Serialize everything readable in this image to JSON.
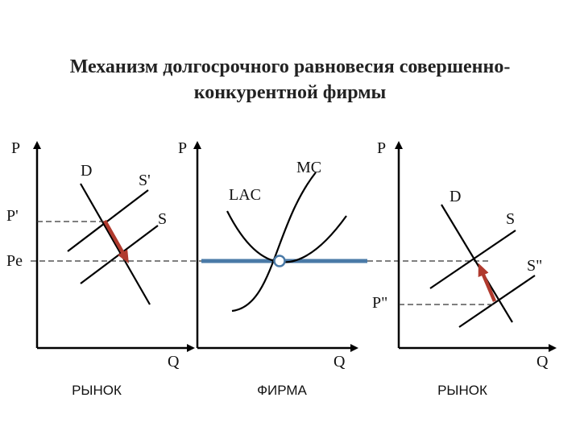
{
  "title": {
    "line1": "Механизм долгосрочного равновесия совершенно-",
    "line2": "конкурентной фирмы"
  },
  "panels": {
    "market_left": {
      "caption": "РЫНОК",
      "axis_y": "P",
      "axis_x": "Q",
      "demand_label": "D",
      "supply_new_label": "S'",
      "supply_label": "S",
      "price_high_label": "P'",
      "price_eq_label": "Pe"
    },
    "firm": {
      "caption": "ФИРМА",
      "axis_y": "P",
      "axis_x": "Q",
      "mc_label": "MC",
      "lac_label": "LAC"
    },
    "market_right": {
      "caption": "РЫНОК",
      "axis_y": "P",
      "axis_x": "Q",
      "demand_label": "D",
      "supply_label": "S",
      "supply_new_label": "S\"",
      "price_low_label": "P\""
    }
  },
  "colors": {
    "price_line": "#4a7aa7",
    "shift_arrow": "#b03a2e",
    "curves": "#000000"
  }
}
